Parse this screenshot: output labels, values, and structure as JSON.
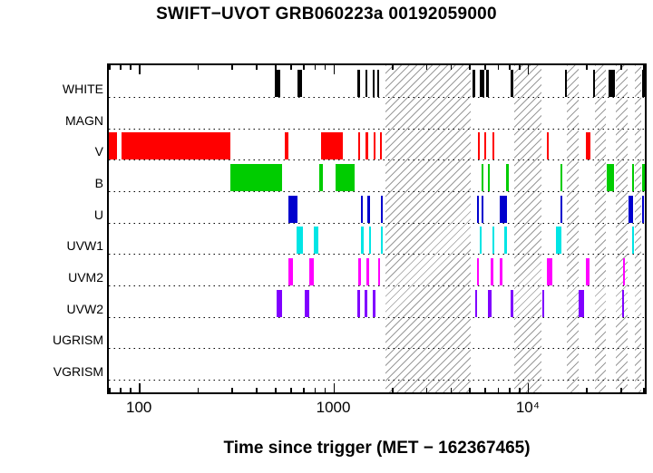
{
  "chart_data": {
    "type": "bar",
    "subtype": "exposure-interval-timeline",
    "title": "SWIFT−UVOT GRB060223a 00192059000",
    "xlabel": "Time since trigger (MET − 162367465)",
    "xaxis": {
      "scale": "log",
      "min": 70,
      "max": 40000,
      "unit": "s",
      "ticks": [
        {
          "value": 100,
          "label": "100"
        },
        {
          "value": 1000,
          "label": "1000"
        },
        {
          "value": 10000,
          "label": "10⁴"
        }
      ]
    },
    "grid": "dotted-horizontal-baselines",
    "hatch_color": "#9a9a9a",
    "occultation_windows": [
      [
        1850,
        5100
      ],
      [
        8500,
        11800
      ],
      [
        15950,
        18200
      ],
      [
        22200,
        25200
      ],
      [
        28300,
        32600
      ],
      [
        35400,
        38500
      ]
    ],
    "rows": [
      {
        "name": "WHITE",
        "color": "#000000",
        "segments": [
          [
            500,
            535
          ],
          [
            655,
            690
          ],
          [
            1330,
            1375
          ],
          [
            1460,
            1500
          ],
          [
            1590,
            1630
          ],
          [
            1685,
            1725
          ],
          [
            5200,
            5350
          ],
          [
            5650,
            5950
          ],
          [
            6100,
            6300
          ],
          [
            8150,
            8400
          ],
          [
            15500,
            15900
          ],
          [
            21600,
            22000
          ],
          [
            26000,
            28100
          ],
          [
            38800,
            40000
          ]
        ]
      },
      {
        "name": "MAGN",
        "color": "#000000",
        "segments": []
      },
      {
        "name": "V",
        "color": "#ff0000",
        "segments": [
          [
            70,
            77
          ],
          [
            81,
            295
          ],
          [
            560,
            590
          ],
          [
            860,
            1120
          ],
          [
            1340,
            1375
          ],
          [
            1470,
            1505
          ],
          [
            1610,
            1645
          ],
          [
            1745,
            1775
          ],
          [
            5550,
            5650
          ],
          [
            5950,
            6070
          ],
          [
            6550,
            6700
          ],
          [
            12500,
            12750
          ],
          [
            19900,
            20900
          ]
        ]
      },
      {
        "name": "B",
        "color": "#00cc00",
        "segments": [
          [
            295,
            545
          ],
          [
            850,
            880
          ],
          [
            1030,
            1290
          ],
          [
            5800,
            5900
          ],
          [
            6250,
            6400
          ],
          [
            7700,
            7950
          ],
          [
            14700,
            15000
          ],
          [
            25600,
            27800
          ],
          [
            34500,
            35200
          ],
          [
            38800,
            40000
          ]
        ]
      },
      {
        "name": "U",
        "color": "#0000cd",
        "segments": [
          [
            590,
            655
          ],
          [
            1380,
            1420
          ],
          [
            1500,
            1540
          ],
          [
            1750,
            1790
          ],
          [
            5500,
            5600
          ],
          [
            5800,
            5900
          ],
          [
            7200,
            7800
          ],
          [
            14700,
            15000
          ],
          [
            32800,
            34800
          ],
          [
            38600,
            39200
          ]
        ]
      },
      {
        "name": "UVW1",
        "color": "#00e5e5",
        "segments": [
          [
            650,
            695
          ],
          [
            790,
            835
          ],
          [
            1390,
            1430
          ],
          [
            1520,
            1560
          ],
          [
            1750,
            1795
          ],
          [
            5650,
            5760
          ],
          [
            6600,
            6750
          ],
          [
            7600,
            7800
          ],
          [
            13900,
            14900
          ],
          [
            34300,
            35200
          ]
        ]
      },
      {
        "name": "UVM2",
        "color": "#ff00ff",
        "segments": [
          [
            585,
            620
          ],
          [
            750,
            795
          ],
          [
            1340,
            1380
          ],
          [
            1480,
            1520
          ],
          [
            1700,
            1745
          ],
          [
            5500,
            5600
          ],
          [
            6450,
            6650
          ],
          [
            7200,
            7400
          ],
          [
            12500,
            13350
          ],
          [
            19900,
            20800
          ],
          [
            31000,
            31500
          ]
        ]
      },
      {
        "name": "UVW2",
        "color": "#8000ff",
        "segments": [
          [
            510,
            545
          ],
          [
            715,
            755
          ],
          [
            1330,
            1370
          ],
          [
            1450,
            1490
          ],
          [
            1600,
            1640
          ],
          [
            5350,
            5450
          ],
          [
            6250,
            6500
          ],
          [
            8200,
            8450
          ],
          [
            11900,
            12150
          ],
          [
            18300,
            19400
          ],
          [
            30500,
            31000
          ]
        ]
      },
      {
        "name": "UGRISM",
        "color": "#000000",
        "segments": []
      },
      {
        "name": "VGRISM",
        "color": "#000000",
        "segments": []
      }
    ]
  }
}
